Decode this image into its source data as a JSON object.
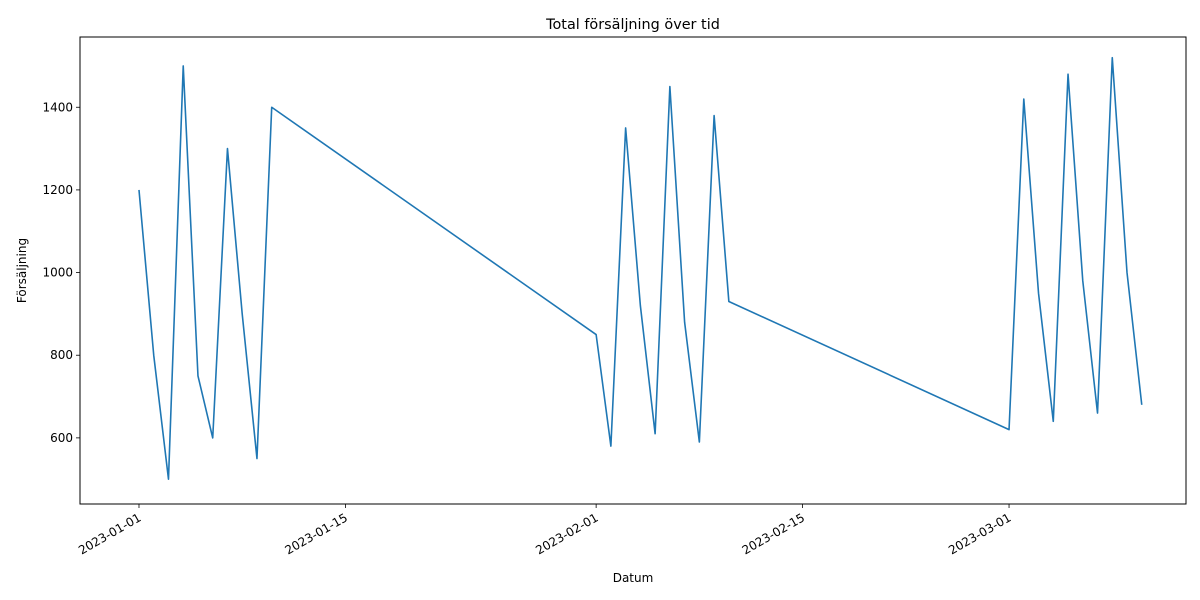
{
  "chart_data": {
    "type": "line",
    "title": "Total försäljning över tid",
    "xlabel": "Datum",
    "ylabel": "Försäljning",
    "x_ticks": [
      "2023-01-01",
      "2023-01-15",
      "2023-02-01",
      "2023-02-15",
      "2023-03-01"
    ],
    "y_ticks": [
      600,
      800,
      1000,
      1200,
      1400
    ],
    "xlim": [
      "2022-12-28",
      "2023-03-13"
    ],
    "ylim": [
      440,
      1570
    ],
    "grid": false,
    "color": "#1f77b4",
    "series": [
      {
        "points": [
          {
            "x": "2023-01-01",
            "y": 1200
          },
          {
            "x": "2023-01-02",
            "y": 800
          },
          {
            "x": "2023-01-03",
            "y": 500
          },
          {
            "x": "2023-01-04",
            "y": 1500
          },
          {
            "x": "2023-01-05",
            "y": 750
          },
          {
            "x": "2023-01-06",
            "y": 600
          },
          {
            "x": "2023-01-07",
            "y": 1300
          },
          {
            "x": "2023-01-08",
            "y": 900
          },
          {
            "x": "2023-01-09",
            "y": 550
          },
          {
            "x": "2023-01-10",
            "y": 1400
          },
          {
            "x": "2023-02-01",
            "y": 850
          },
          {
            "x": "2023-02-02",
            "y": 580
          },
          {
            "x": "2023-02-03",
            "y": 1350
          },
          {
            "x": "2023-02-04",
            "y": 920
          },
          {
            "x": "2023-02-05",
            "y": 610
          },
          {
            "x": "2023-02-06",
            "y": 1450
          },
          {
            "x": "2023-02-07",
            "y": 880
          },
          {
            "x": "2023-02-08",
            "y": 590
          },
          {
            "x": "2023-02-09",
            "y": 1380
          },
          {
            "x": "2023-02-10",
            "y": 930
          },
          {
            "x": "2023-03-01",
            "y": 620
          },
          {
            "x": "2023-03-02",
            "y": 1420
          },
          {
            "x": "2023-03-03",
            "y": 950
          },
          {
            "x": "2023-03-04",
            "y": 640
          },
          {
            "x": "2023-03-05",
            "y": 1480
          },
          {
            "x": "2023-03-06",
            "y": 980
          },
          {
            "x": "2023-03-07",
            "y": 660
          },
          {
            "x": "2023-03-08",
            "y": 1520
          },
          {
            "x": "2023-03-09",
            "y": 1000
          },
          {
            "x": "2023-03-10",
            "y": 680
          }
        ]
      }
    ]
  }
}
